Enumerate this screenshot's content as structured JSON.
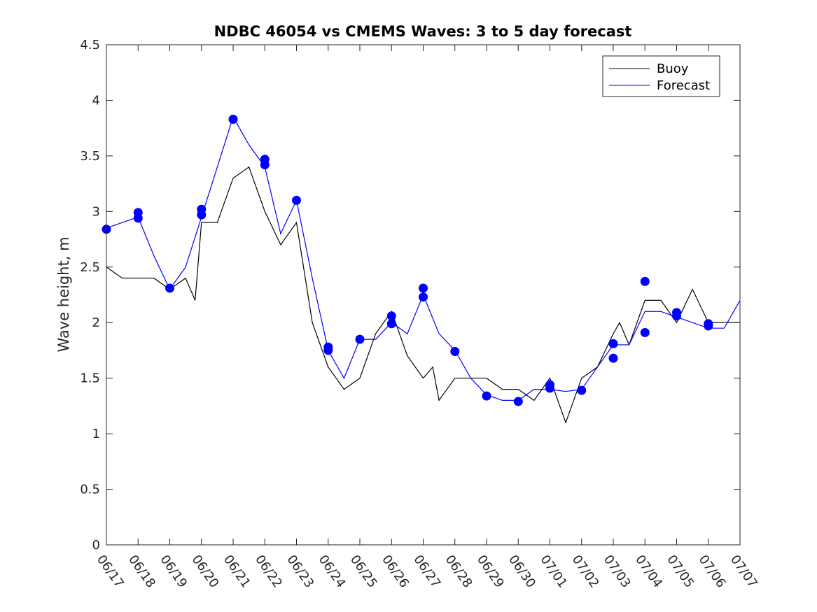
{
  "chart_data": {
    "type": "line",
    "title": "NDBC 46054 vs CMEMS Waves: 3 to 5 day forecast",
    "xlabel": "",
    "ylabel": "Wave height, m",
    "x_tick_labels": [
      "06/17",
      "06/18",
      "06/19",
      "06/20",
      "06/21",
      "06/22",
      "06/23",
      "06/24",
      "06/25",
      "06/26",
      "06/27",
      "06/28",
      "06/29",
      "06/30",
      "07/01",
      "07/02",
      "07/03",
      "07/04",
      "07/05",
      "07/06",
      "07/07"
    ],
    "y_tick_labels": [
      "0",
      "0.5",
      "1",
      "1.5",
      "2",
      "2.5",
      "3",
      "3.5",
      "4",
      "4.5"
    ],
    "xlim": [
      0,
      20
    ],
    "ylim": [
      0,
      4.5
    ],
    "grid": false,
    "legend": {
      "location": "top-right",
      "entries": [
        "Buoy",
        "Forecast"
      ]
    },
    "colors": {
      "buoy": "#000000",
      "forecast": "#0000ff",
      "markers": "#0000ff"
    },
    "series": [
      {
        "name": "Buoy",
        "x": [
          0,
          0.5,
          1,
          1.5,
          2,
          2.5,
          2.8,
          3,
          3.5,
          4,
          4.5,
          5,
          5.5,
          6,
          6.5,
          7,
          7.5,
          8,
          8.5,
          9,
          9.5,
          10,
          10.3,
          10.5,
          11,
          11.5,
          12,
          12.5,
          13,
          13.5,
          14,
          14.5,
          15,
          15.5,
          16,
          16.2,
          16.5,
          17,
          17.5,
          18,
          18.5,
          19,
          19.5,
          20
        ],
        "y": [
          2.5,
          2.4,
          2.4,
          2.4,
          2.3,
          2.4,
          2.2,
          2.9,
          2.9,
          3.3,
          3.4,
          3.0,
          2.7,
          2.9,
          2.0,
          1.6,
          1.4,
          1.5,
          1.9,
          2.1,
          1.7,
          1.5,
          1.6,
          1.3,
          1.5,
          1.5,
          1.5,
          1.4,
          1.4,
          1.3,
          1.5,
          1.1,
          1.5,
          1.6,
          1.9,
          2.0,
          1.8,
          2.2,
          2.2,
          2.0,
          2.3,
          2.0,
          2.0,
          2.0
        ]
      },
      {
        "name": "Forecast",
        "x": [
          0,
          0.5,
          1,
          1.5,
          2,
          2.5,
          3,
          3.5,
          4,
          4.5,
          5,
          5.5,
          6,
          6.5,
          7,
          7.5,
          8,
          8.5,
          9,
          9.5,
          10,
          10.5,
          11,
          11.5,
          12,
          12.5,
          13,
          13.5,
          14,
          14.5,
          15,
          15.5,
          16,
          16.5,
          17,
          17.5,
          18,
          18.5,
          19,
          19.5,
          20
        ],
        "y": [
          2.85,
          2.9,
          2.95,
          2.6,
          2.3,
          2.5,
          2.95,
          3.4,
          3.85,
          3.6,
          3.4,
          2.8,
          3.1,
          2.4,
          1.75,
          1.5,
          1.85,
          1.85,
          2.0,
          1.9,
          2.25,
          1.9,
          1.75,
          1.5,
          1.35,
          1.3,
          1.3,
          1.4,
          1.4,
          1.38,
          1.4,
          1.6,
          1.8,
          1.8,
          2.1,
          2.1,
          2.05,
          2.0,
          1.95,
          1.95,
          2.2
        ]
      }
    ],
    "markers": {
      "x": [
        0,
        1,
        1,
        2,
        3,
        3,
        4,
        5,
        5,
        6,
        7,
        7,
        8,
        9,
        9,
        10,
        10,
        11,
        12,
        13,
        14,
        14,
        15,
        16,
        16,
        17,
        17,
        18,
        18,
        19,
        19
      ],
      "y": [
        2.84,
        2.99,
        2.94,
        2.31,
        3.02,
        2.97,
        3.83,
        3.47,
        3.42,
        3.1,
        1.78,
        1.75,
        1.85,
        2.06,
        1.99,
        2.31,
        2.23,
        1.74,
        1.34,
        1.29,
        1.44,
        1.41,
        1.39,
        1.81,
        1.68,
        2.37,
        1.91,
        2.09,
        2.06,
        1.99,
        1.97
      ]
    }
  }
}
